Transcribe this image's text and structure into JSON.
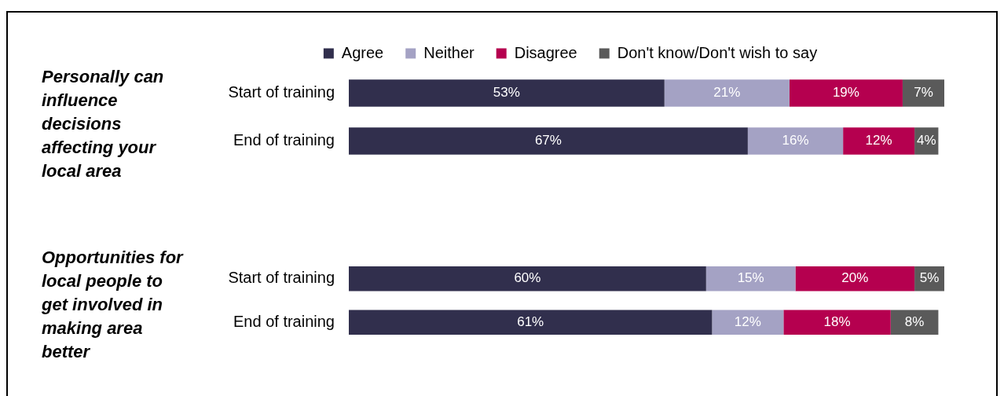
{
  "chart_data": [
    {
      "type": "bar",
      "orientation": "horizontal",
      "stacked": true,
      "title": "Personally can influence decisions affecting your local area",
      "categories": [
        "Start of training",
        "End of training"
      ],
      "xlim": [
        0,
        100
      ],
      "legend": "top",
      "tick_labels": "y",
      "series": [
        {
          "name": "Agree",
          "color": "#312f4d",
          "values": [
            53,
            67
          ],
          "value_labels": [
            "53%",
            "67%"
          ]
        },
        {
          "name": "Neither",
          "color": "#a4a2c4",
          "values": [
            21,
            16
          ],
          "value_labels": [
            "21%",
            "16%"
          ]
        },
        {
          "name": "Disagree",
          "color": "#b5004f",
          "values": [
            19,
            12
          ],
          "value_labels": [
            "19%",
            "12%"
          ]
        },
        {
          "name": "Don't know/Don't wish to say",
          "color": "#5a5a5a",
          "values": [
            7,
            4
          ],
          "value_labels": [
            "7%",
            "4%"
          ]
        }
      ]
    },
    {
      "type": "bar",
      "orientation": "horizontal",
      "stacked": true,
      "title": "Opportunities for local people to get involved in making area better",
      "categories": [
        "Start of training",
        "End of training"
      ],
      "xlim": [
        0,
        100
      ],
      "legend": false,
      "tick_labels": "y",
      "series": [
        {
          "color": "#312f4d",
          "values": [
            60,
            61
          ],
          "value_labels": [
            "60%",
            "61%"
          ]
        },
        {
          "color": "#a4a2c4",
          "values": [
            15,
            12
          ],
          "value_labels": [
            "15%",
            "12%"
          ]
        },
        {
          "color": "#b5004f",
          "values": [
            20,
            18
          ],
          "value_labels": [
            "20%",
            "18%"
          ]
        },
        {
          "color": "#5a5a5a",
          "values": [
            5,
            8
          ],
          "value_labels": [
            "5%",
            "8%"
          ]
        }
      ]
    }
  ]
}
